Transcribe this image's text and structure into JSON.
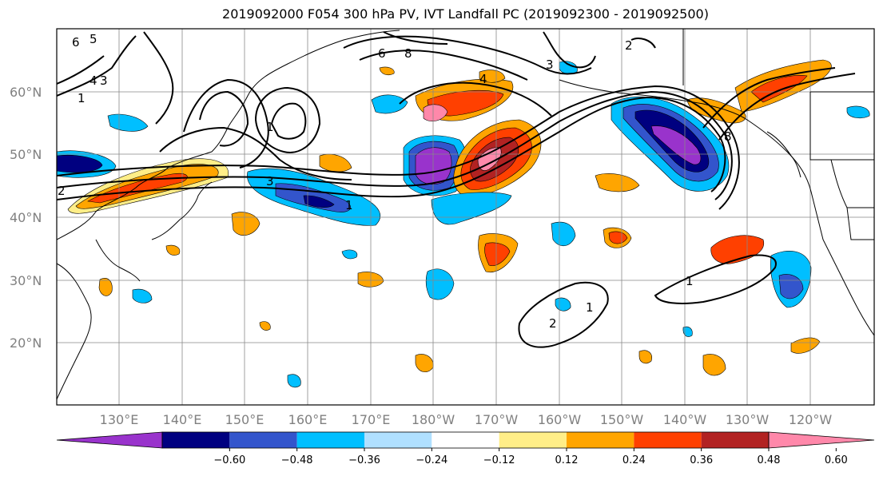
{
  "title": "2019092000 F054 300 hPa PV, IVT Landfall PC (2019092300 - 2019092500)",
  "map": {
    "lat_labels": [
      "60°N",
      "50°N",
      "40°N",
      "30°N",
      "20°N"
    ],
    "lon_labels": [
      "130°E",
      "140°E",
      "150°E",
      "160°E",
      "170°E",
      "180°W",
      "170°W",
      "160°W",
      "150°W",
      "140°W",
      "130°W",
      "120°W"
    ],
    "contour_labels": [
      "6",
      "5",
      "4",
      "3",
      "1",
      "2",
      "3",
      "1",
      "1",
      "2",
      "1",
      "4",
      "3",
      "8",
      "1",
      "2",
      "6",
      "8"
    ]
  },
  "colorbar": {
    "colors": [
      "#9933cc",
      "#000080",
      "#3355cc",
      "#00bfff",
      "#b0e0ff",
      "#ffffff",
      "#ffee88",
      "#ffa500",
      "#ff4000",
      "#b22222",
      "#ff88aa"
    ],
    "tick_labels": [
      "−0.60",
      "−0.48",
      "−0.36",
      "−0.24",
      "−0.12",
      "0.12",
      "0.24",
      "0.36",
      "0.48",
      "0.60"
    ]
  }
}
